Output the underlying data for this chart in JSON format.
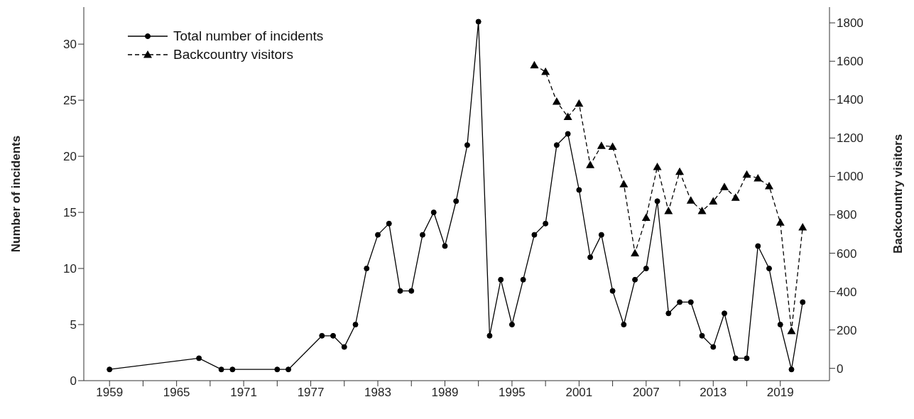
{
  "chart_data": {
    "type": "line",
    "ylabel": "Number of incidents",
    "y2label": "Backcountry visitors",
    "xlim": [
      1956.7,
      2023.4
    ],
    "xticks": [
      1959,
      {
        "value": 1962,
        "label": null
      },
      1965,
      {
        "value": 1968,
        "label": null
      },
      1971,
      {
        "value": 1974,
        "label": null
      },
      1977,
      {
        "value": 1980,
        "label": null
      },
      1983,
      {
        "value": 1986,
        "label": null
      },
      1989,
      {
        "value": 1992,
        "label": null
      },
      1995,
      {
        "value": 1998,
        "label": null
      },
      2001,
      {
        "value": 2004,
        "label": null
      },
      2007,
      {
        "value": 2010,
        "label": null
      },
      2013,
      {
        "value": 2016,
        "label": null
      },
      2019
    ],
    "ylim": [
      0,
      33.3
    ],
    "yticks": [
      0,
      5,
      10,
      15,
      20,
      25,
      30
    ],
    "y2lim": [
      -64,
      1882
    ],
    "y2ticks": [
      0,
      200,
      400,
      600,
      800,
      1000,
      1200,
      1400,
      1600,
      1800
    ],
    "grid": false,
    "legend": "top left",
    "series": [
      {
        "name": "Total number of incidents",
        "color": "#000000",
        "marker": "circle",
        "line_style": "solid",
        "x": [
          1959,
          1967,
          1969,
          1970,
          1974,
          1975,
          1978,
          1979,
          1980,
          1981,
          1982,
          1983,
          1984,
          1985,
          1986,
          1987,
          1988,
          1989,
          1990,
          1991,
          1992,
          1993,
          1994,
          1995,
          1996,
          1997,
          1998,
          1999,
          2000,
          2001,
          2002,
          2003,
          2004,
          2005,
          2006,
          2007,
          2008,
          2009,
          2010,
          2011,
          2012,
          2013,
          2014,
          2015,
          2016,
          2017,
          2018,
          2019,
          2020,
          2021
        ],
        "values": [
          1,
          2,
          1,
          1,
          1,
          1,
          4,
          4,
          3,
          5,
          10,
          13,
          14,
          8,
          8,
          13,
          15,
          12,
          16,
          21,
          32,
          4,
          9,
          5,
          9,
          13,
          14,
          21,
          22,
          17,
          11,
          13,
          8,
          5,
          9,
          10,
          16,
          6,
          7,
          7,
          4,
          3,
          6,
          2,
          2,
          12,
          10,
          5,
          1,
          7
        ]
      },
      {
        "name": "Backcountry visitors",
        "color": "#000000",
        "marker": "triangle",
        "line_style": "dashed",
        "axis": "y2",
        "x": [
          1997,
          1998,
          1999,
          2000,
          2001,
          2002,
          2003,
          2004,
          2005,
          2006,
          2007,
          2008,
          2009,
          2010,
          2011,
          2012,
          2013,
          2014,
          2015,
          2016,
          2017,
          2018,
          2019,
          2020,
          2021
        ],
        "values": [
          1580,
          1545,
          1390,
          1310,
          1380,
          1060,
          1160,
          1155,
          960,
          600,
          785,
          1050,
          820,
          1025,
          875,
          820,
          870,
          945,
          890,
          1010,
          990,
          950,
          760,
          195,
          735
        ]
      }
    ]
  }
}
